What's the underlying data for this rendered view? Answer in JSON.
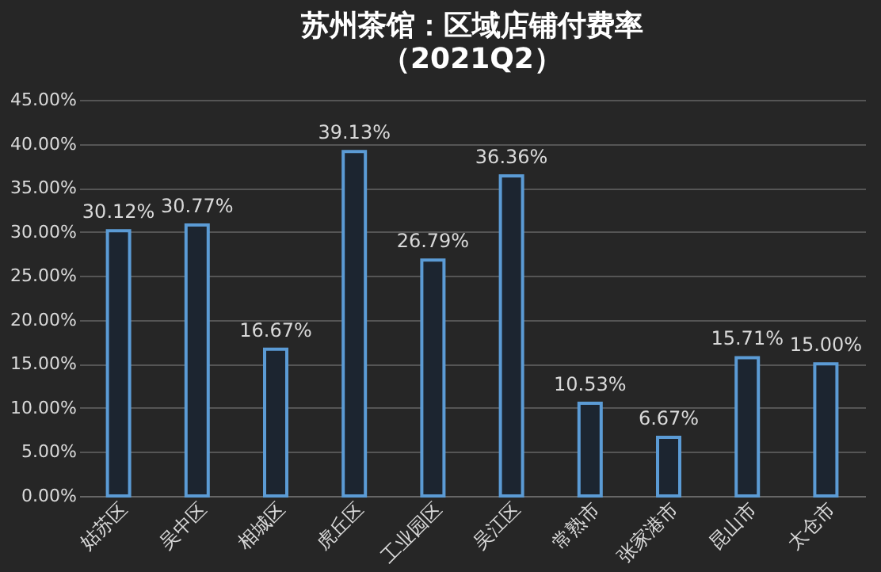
{
  "chart_data": {
    "type": "bar",
    "title": "苏州茶馆：区域店铺付费率",
    "subtitle": "（2021Q2）",
    "categories": [
      "姑苏区",
      "吴中区",
      "相城区",
      "虎丘区",
      "工业园区",
      "吴江区",
      "常熟市",
      "张家港市",
      "昆山市",
      "太仓市"
    ],
    "values": [
      30.12,
      30.77,
      16.67,
      39.13,
      26.79,
      36.36,
      10.53,
      6.67,
      15.71,
      15.0
    ],
    "value_labels": [
      "30.12%",
      "30.77%",
      "16.67%",
      "39.13%",
      "26.79%",
      "36.36%",
      "10.53%",
      "6.67%",
      "15.71%",
      "15.00%"
    ],
    "color": "#5b9bd5",
    "ylim": [
      0,
      45
    ],
    "yticks": [
      {
        "value": 0,
        "label": "0.00%"
      },
      {
        "value": 5,
        "label": "5.00%"
      },
      {
        "value": 10,
        "label": "10.00%"
      },
      {
        "value": 15,
        "label": "15.00%"
      },
      {
        "value": 20,
        "label": "20.00%"
      },
      {
        "value": 25,
        "label": "25.00%"
      },
      {
        "value": 30,
        "label": "30.00%"
      },
      {
        "value": 35,
        "label": "35.00%"
      },
      {
        "value": 40,
        "label": "40.00%"
      },
      {
        "value": 45,
        "label": "45.00%"
      }
    ],
    "grid": "y"
  }
}
